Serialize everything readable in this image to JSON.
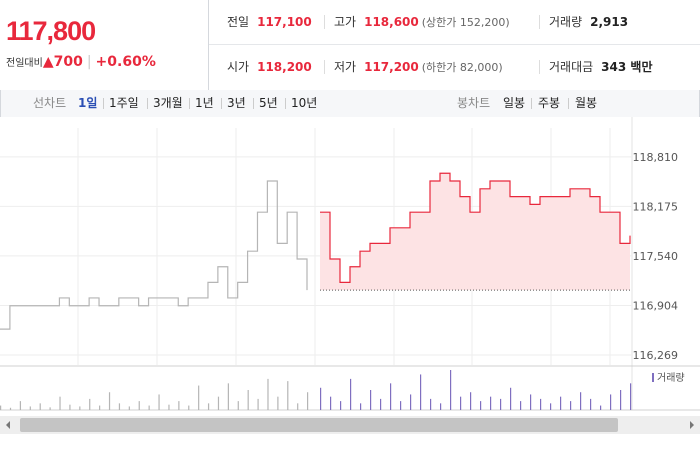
{
  "header": {
    "price": "117,800",
    "change_label": "전일대비",
    "change": "700",
    "change_pct": "+0.60%",
    "rows": [
      [
        {
          "label": "전일",
          "value": "117,100"
        },
        {
          "label": "고가",
          "value": "118,600",
          "note": "(상한가 152,200)"
        },
        {
          "label": "거래량",
          "value": "2,913"
        }
      ],
      [
        {
          "label": "시가",
          "value": "118,200"
        },
        {
          "label": "저가",
          "value": "117,200",
          "note": "(하한가 82,000)"
        },
        {
          "label": "거래대금",
          "value": "343 백만"
        }
      ]
    ]
  },
  "toolbar": {
    "line_label": "선차트",
    "line_periods": [
      "1일",
      "1주일",
      "3개월",
      "1년",
      "3년",
      "5년",
      "10년"
    ],
    "candle_label": "봉차트",
    "candle_periods": [
      "일봉",
      "주봉",
      "월봉"
    ]
  },
  "chart_data": {
    "type": "line",
    "ylim": [
      116140,
      119180
    ],
    "yticks": [
      {
        "value": 118810,
        "label": "118,810"
      },
      {
        "value": 118175,
        "label": "118,175"
      },
      {
        "value": 117540,
        "label": "117,540"
      },
      {
        "value": 116904,
        "label": "116,904"
      },
      {
        "value": 116269,
        "label": "116,269"
      }
    ],
    "grid": true,
    "base": 117100,
    "series": [
      {
        "color": "#b5b5b5",
        "values": [
          116600,
          116900,
          116900,
          116900,
          116900,
          116900,
          117000,
          116900,
          116900,
          117000,
          116900,
          116900,
          117000,
          117000,
          116900,
          117000,
          117000,
          117000,
          116900,
          117000,
          117000,
          117200,
          117400,
          117000,
          117200,
          117600,
          118100,
          118500,
          117700,
          118100,
          117500,
          117100,
          null,
          null,
          null,
          null,
          null,
          null,
          null,
          null,
          null,
          null,
          null,
          null,
          null,
          null,
          null,
          null,
          null,
          null,
          null,
          null,
          null,
          null,
          null,
          null,
          null,
          null,
          null,
          null,
          null,
          null,
          null,
          null
        ]
      },
      {
        "color": "#e8283c",
        "fill": "#fde3e4",
        "values": [
          null,
          null,
          null,
          null,
          null,
          null,
          null,
          null,
          null,
          null,
          null,
          null,
          null,
          null,
          null,
          null,
          null,
          null,
          null,
          null,
          null,
          null,
          null,
          null,
          null,
          null,
          null,
          null,
          null,
          null,
          null,
          null,
          118100,
          117500,
          117200,
          117400,
          117600,
          117700,
          117700,
          117900,
          117900,
          118100,
          118100,
          118500,
          118600,
          118500,
          118300,
          118100,
          118400,
          118500,
          118500,
          118300,
          118300,
          118200,
          118300,
          118300,
          118300,
          118400,
          118400,
          118300,
          118100,
          118100,
          117700,
          117800
        ]
      }
    ],
    "volume": {
      "name": "거래량",
      "color": "#7f6fc0",
      "values": [
        10,
        5,
        20,
        8,
        15,
        6,
        30,
        12,
        8,
        25,
        10,
        40,
        15,
        8,
        20,
        10,
        35,
        12,
        20,
        10,
        55,
        15,
        30,
        60,
        20,
        45,
        25,
        70,
        30,
        65,
        15,
        40,
        50,
        30,
        20,
        70,
        15,
        45,
        25,
        60,
        20,
        35,
        80,
        25,
        15,
        90,
        30,
        40,
        20,
        30,
        25,
        50,
        20,
        35,
        25,
        15,
        30,
        20,
        40,
        25,
        10,
        35,
        45,
        60
      ]
    }
  }
}
